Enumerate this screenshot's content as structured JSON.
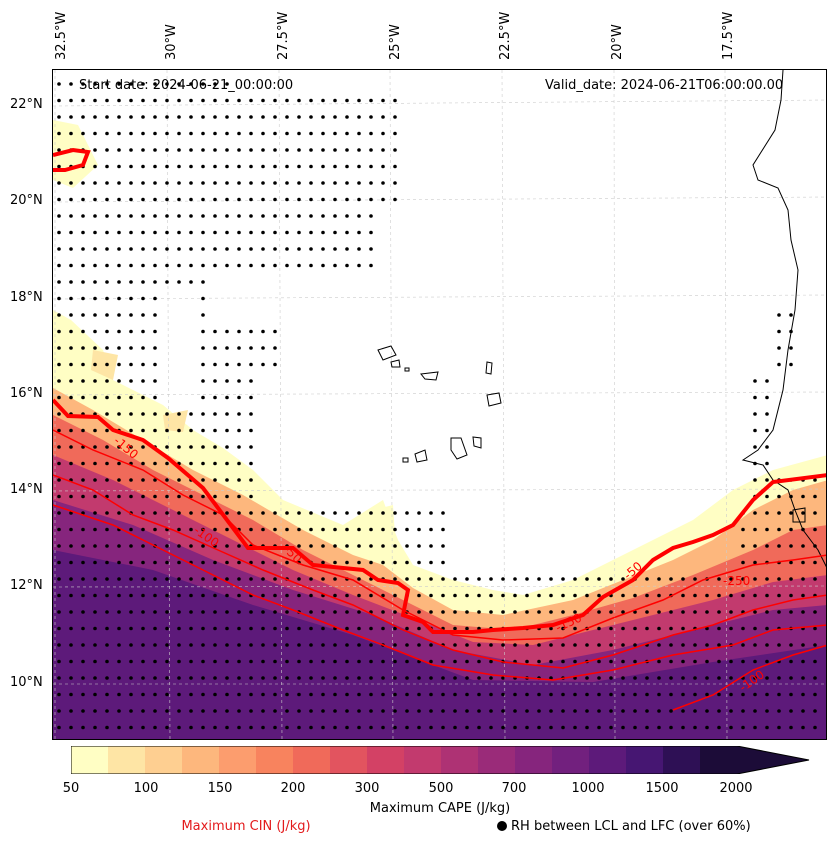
{
  "map": {
    "start_date": "Start date: 2024-06-21_00:00:00",
    "valid_date": "Valid_date: 2024-06-21T06:00:00.00",
    "lon_labels": [
      "32.5°W",
      "30°W",
      "27.5°W",
      "25°W",
      "22.5°W",
      "20°W",
      "17.5°W"
    ],
    "lat_labels": [
      "22°N",
      "20°N",
      "18°N",
      "16°N",
      "14°N",
      "12°N",
      "10°N"
    ],
    "cin_contour_labels": [
      "-150",
      "-100",
      "-50",
      "-250",
      "-150",
      "-50",
      "-100"
    ],
    "fill_colors": [
      "#fffec4",
      "#fee5a5",
      "#fecf91",
      "#fdb77d",
      "#fc9d6e",
      "#f8835e",
      "#f06a5a",
      "#e2545f",
      "#d34165",
      "#c23a6e",
      "#ae3274",
      "#9a2b79",
      "#86257d",
      "#72207e",
      "#5d1a7a",
      "#461672",
      "#2e1055",
      "#1c0c38"
    ],
    "cin_color": "#ff0000",
    "stipple_color": "#000000",
    "coast_color": "#000000",
    "grid_color": "#cccccc"
  },
  "colorbar": {
    "ticks": [
      "50",
      "100",
      "150",
      "200",
      "300",
      "500",
      "700",
      "1000",
      "1500",
      "2000"
    ],
    "label": "Maximum CAPE (J/kg)",
    "cin_legend": "Maximum CIN (J/kg)",
    "rh_legend": "RH between LCL and LFC (over 60%)"
  }
}
